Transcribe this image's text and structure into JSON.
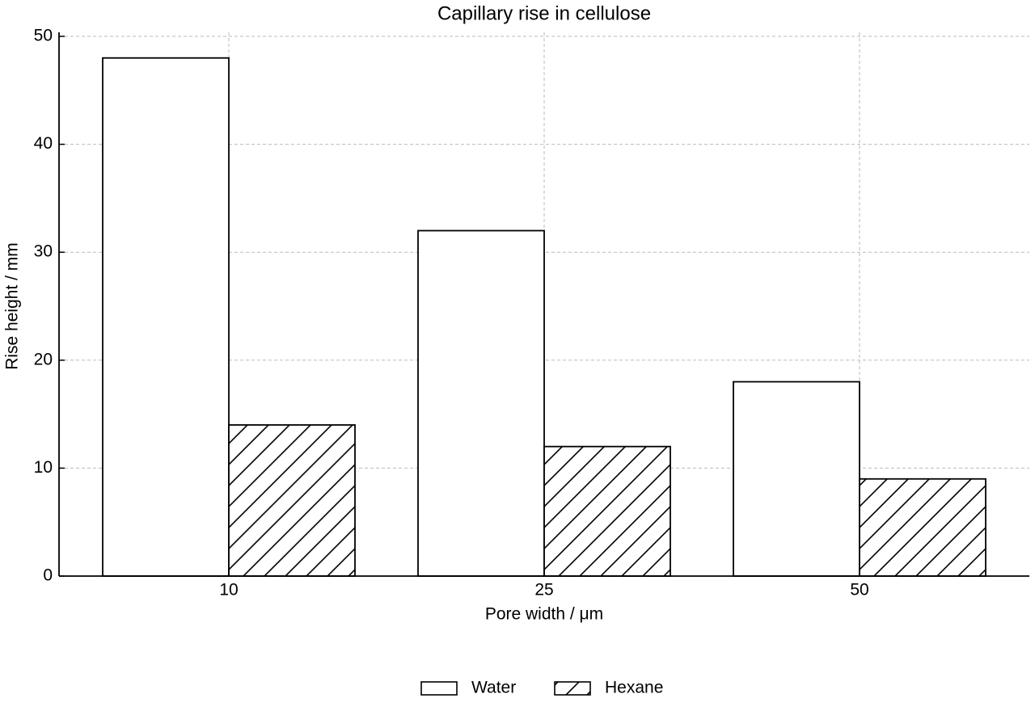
{
  "chart_data": {
    "type": "bar",
    "title": "Capillary rise in cellulose",
    "x_label": "Pore width / μm",
    "y_label": "Rise height / mm",
    "categories": [
      "10",
      "25",
      "50"
    ],
    "series": [
      {
        "name": "Water",
        "color": "#ffffff",
        "values": [
          48,
          32,
          18
        ]
      },
      {
        "name": "Hexane",
        "color": "#ffffff",
        "hatch": "/",
        "values": [
          14,
          12,
          9
        ]
      }
    ],
    "ylim": [
      0,
      50
    ],
    "yticks": [
      0,
      10,
      20,
      30,
      40,
      50
    ],
    "grid": true,
    "legend": "bottom"
  }
}
